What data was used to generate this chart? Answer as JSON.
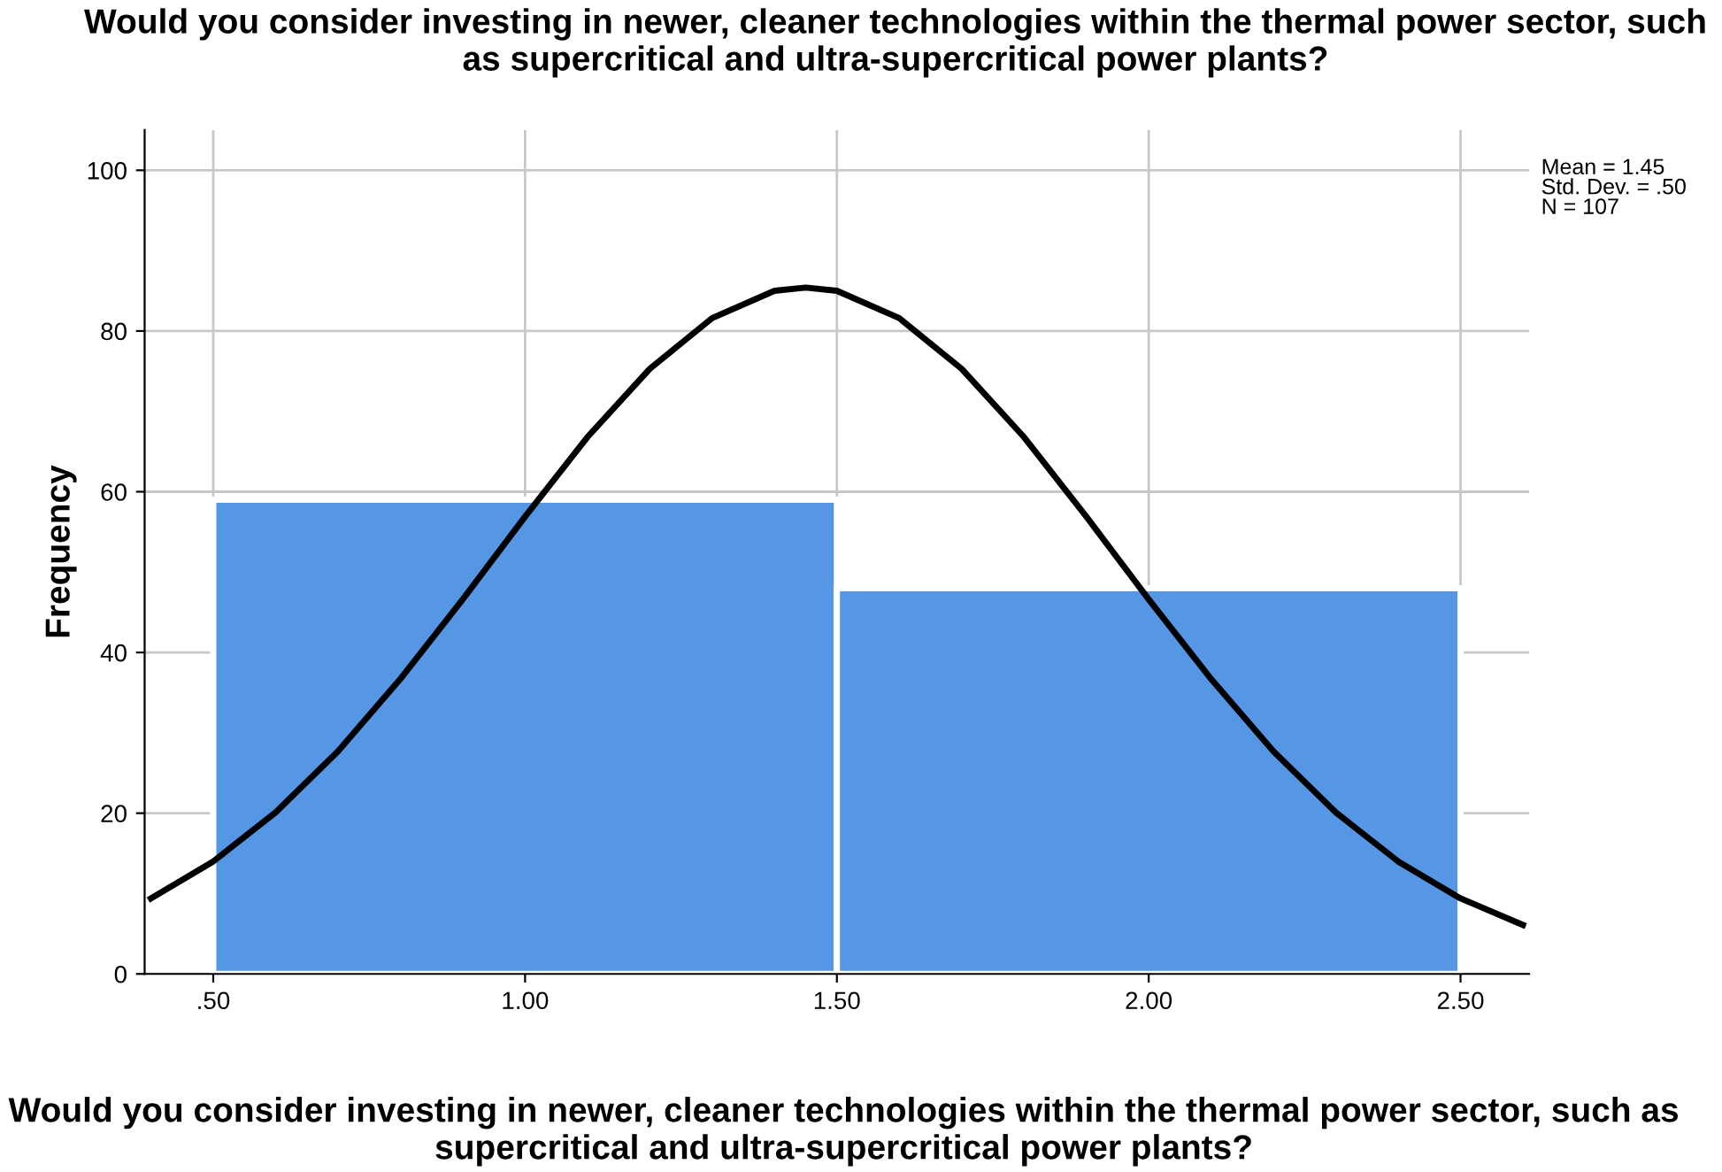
{
  "chart_data": {
    "type": "histogram",
    "title": "Would you consider investing in newer, cleaner technologies within the thermal power sector, such as supercritical and ultra-supercritical power plants?",
    "xlabel": "Would you consider investing in newer, cleaner technologies within the thermal power sector, such as supercritical and ultra-supercritical power plants?",
    "ylabel": "Frequency",
    "bins": [
      0.5,
      1.5,
      2.5
    ],
    "values": [
      59,
      48
    ],
    "color": "#5596e5",
    "series": [
      {
        "type": "line",
        "color": "#000000",
        "x": [
          0.4,
          0.5,
          0.6,
          0.7,
          0.8,
          0.9,
          1.0,
          1.1,
          1.2,
          1.3,
          1.4,
          1.45,
          1.5,
          1.6,
          1.7,
          1.8,
          1.9,
          2.0,
          2.1,
          2.2,
          2.3,
          2.4,
          2.5,
          2.6
        ],
        "values": [
          9.4,
          14.0,
          20.1,
          27.7,
          36.7,
          46.6,
          56.9,
          66.8,
          75.3,
          81.6,
          85.0,
          85.4,
          85.0,
          81.6,
          75.3,
          66.8,
          56.9,
          46.6,
          36.7,
          27.7,
          20.1,
          14.0,
          9.4,
          6.1
        ]
      }
    ],
    "annotations": [
      "Mean = 1.45",
      "Std. Dev. = .50",
      "N = 107"
    ],
    "xlim": [
      0.39,
      2.61
    ],
    "ylim": [
      0,
      105
    ],
    "xticks": [
      {
        "value": 0.5,
        "label": ".50"
      },
      {
        "value": 1.0,
        "label": "1.00"
      },
      {
        "value": 1.5,
        "label": "1.50"
      },
      {
        "value": 2.0,
        "label": "2.00"
      },
      {
        "value": 2.5,
        "label": "2.50"
      }
    ],
    "yticks": [
      0,
      20,
      40,
      60,
      80,
      100
    ],
    "grid": true,
    "marker": "none",
    "line_style": "solid"
  }
}
